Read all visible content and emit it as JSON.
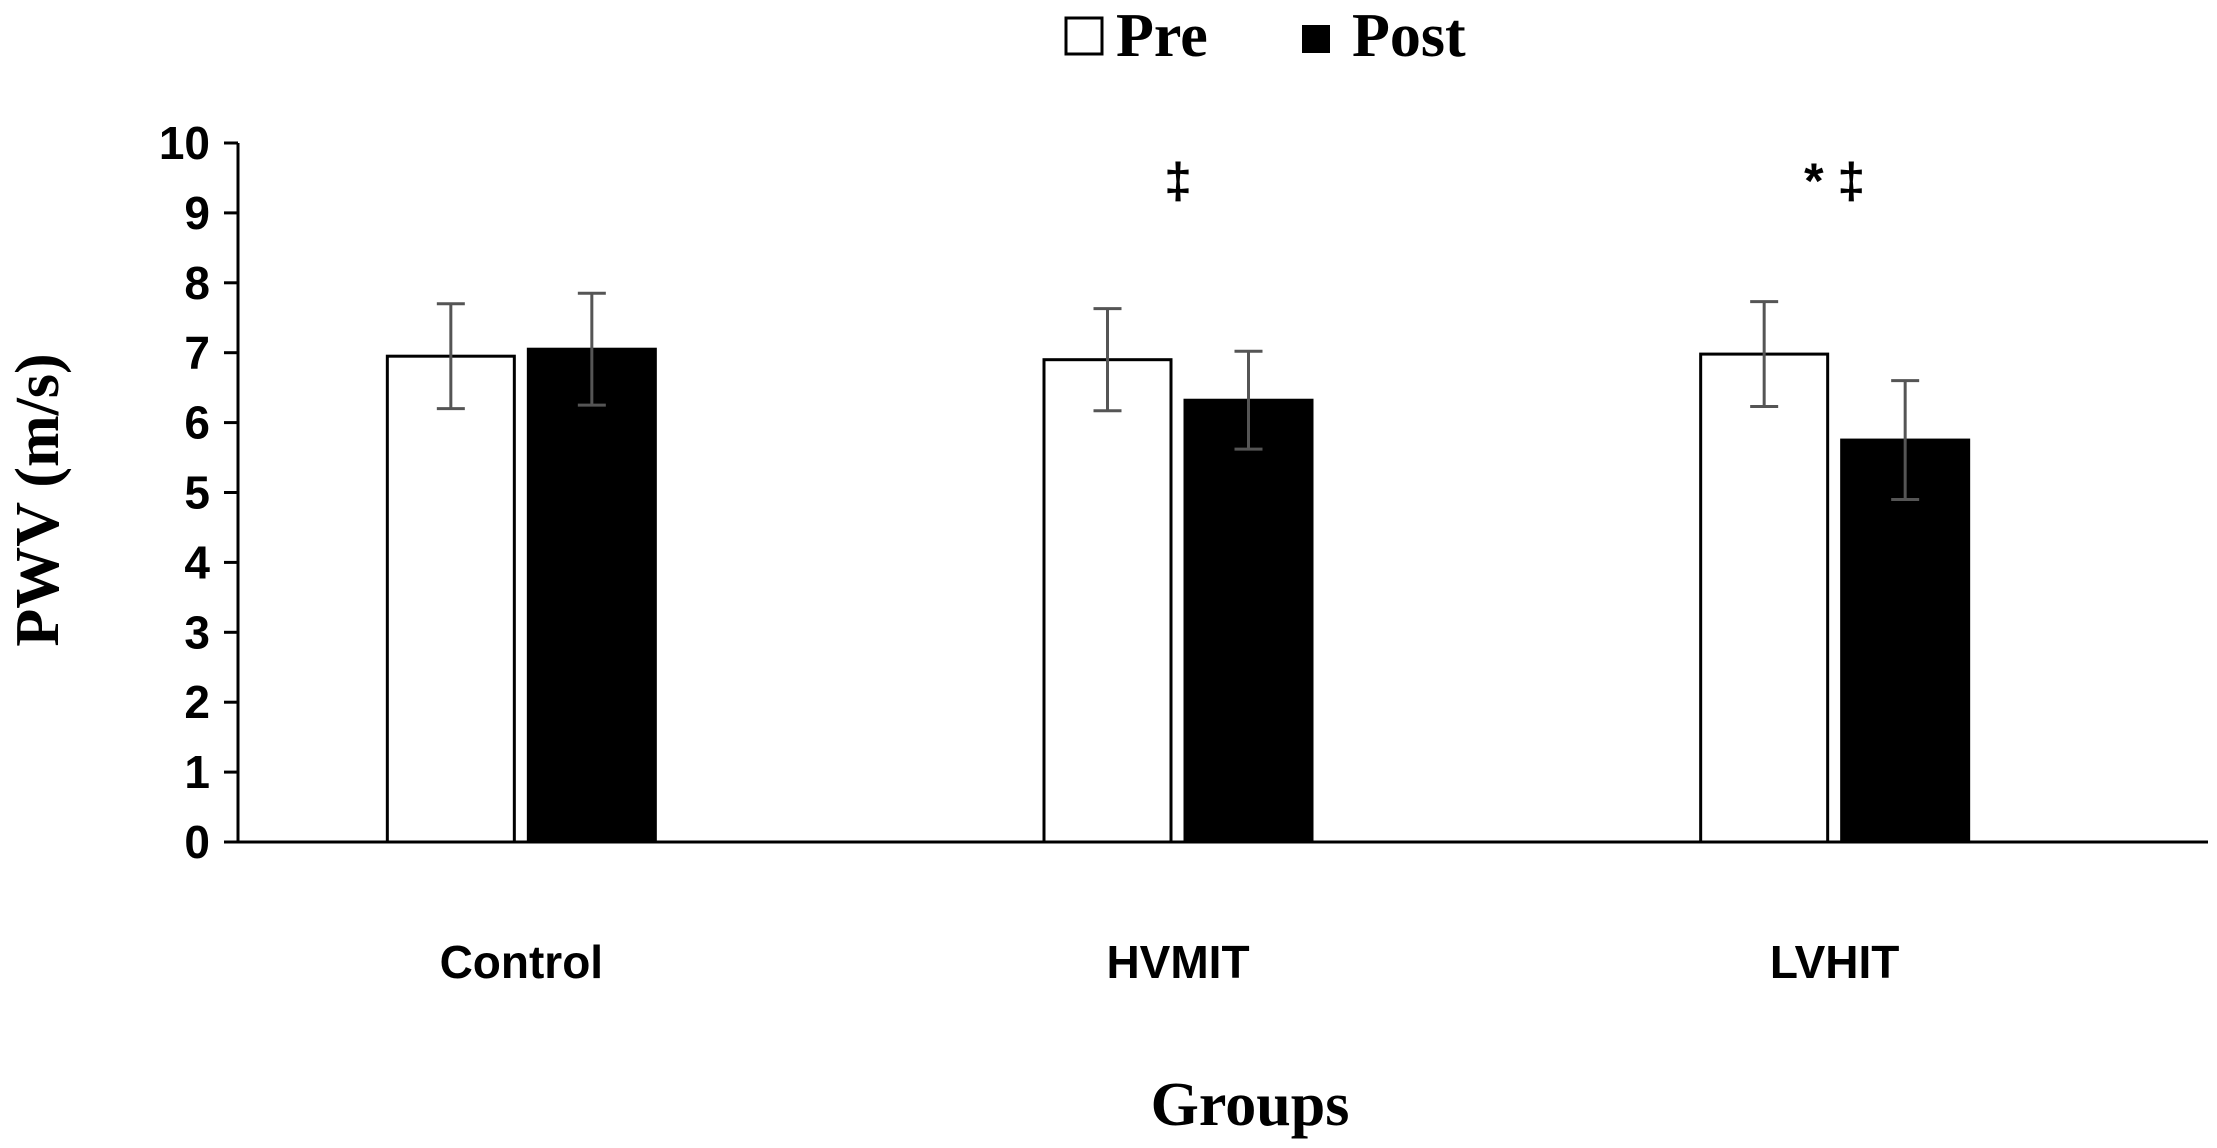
{
  "chart_data": {
    "type": "bar",
    "categories": [
      "Control",
      "HVMIT",
      "LVHIT"
    ],
    "series": [
      {
        "name": "Pre",
        "values": [
          6.95,
          6.9,
          6.98
        ],
        "errors": [
          0.75,
          0.73,
          0.75
        ],
        "color": "#ffffff"
      },
      {
        "name": "Post",
        "values": [
          7.05,
          6.32,
          5.75
        ],
        "errors": [
          0.8,
          0.7,
          0.85
        ],
        "color": "#000000"
      }
    ],
    "xlabel": "Groups",
    "ylabel": "PWV (m/s)",
    "ylim": [
      0,
      10
    ],
    "yticks": [
      0,
      1,
      2,
      3,
      4,
      5,
      6,
      7,
      8,
      9,
      10
    ],
    "legend_position": "top-center",
    "grid": false,
    "annotations": [
      {
        "category": "HVMIT",
        "text": "‡"
      },
      {
        "category": "LVHIT",
        "text": "* ‡"
      }
    ]
  }
}
